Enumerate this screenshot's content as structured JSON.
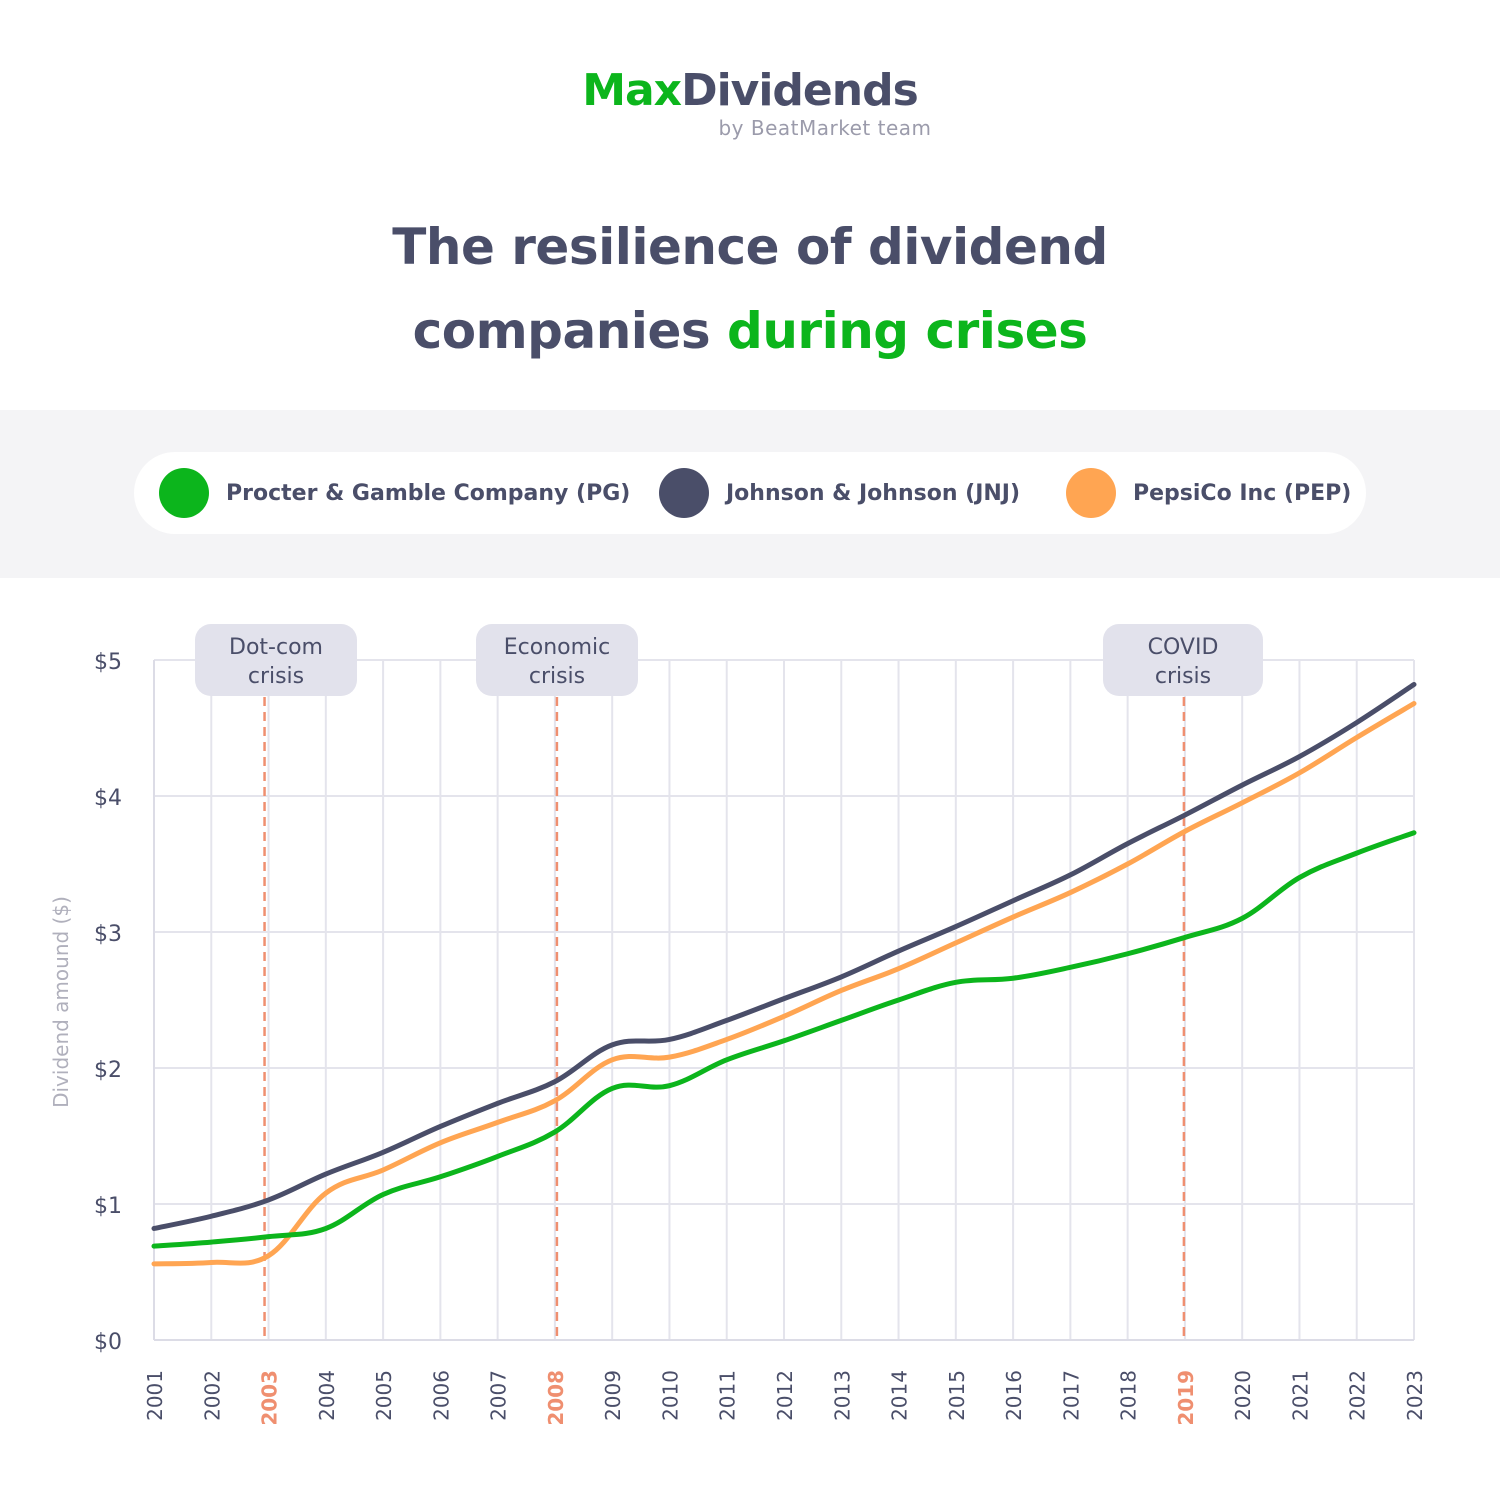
{
  "brand": {
    "name_part1": "Max",
    "name_part2": "Dividends",
    "subtitle": "by BeatMarket team"
  },
  "title": {
    "line1": "The resilience of dividend",
    "line2_plain": "companies ",
    "line2_accent": "during crises"
  },
  "colors": {
    "green": "#0cb51c",
    "navy": "#4a4e69",
    "orange": "#ffa552",
    "crisis": "#ef8f70",
    "annotation_bg": "#e2e2ec"
  },
  "legend": [
    {
      "label": "Procter & Gamble Company (PG)",
      "color": "#0cb51c"
    },
    {
      "label": "Johnson & Johnson (JNJ)",
      "color": "#4a4e69"
    },
    {
      "label": "PepsiCo Inc (PEP)",
      "color": "#ffa552"
    }
  ],
  "chart_data": {
    "type": "line",
    "ylabel": "Dividend amound ($)",
    "xlabel": "",
    "ylim": [
      0,
      5
    ],
    "yticks": [
      "$0",
      "$1",
      "$2",
      "$3",
      "$4",
      "$5"
    ],
    "grid": true,
    "x": [
      "2001",
      "2002",
      "2003",
      "2004",
      "2005",
      "2006",
      "2007",
      "2008",
      "2009",
      "2010",
      "2011",
      "2012",
      "2013",
      "2014",
      "2015",
      "2016",
      "2017",
      "2018",
      "2019",
      "2020",
      "2021",
      "2022",
      "2023"
    ],
    "series": [
      {
        "name": "Procter & Gamble Company (PG)",
        "color": "#0cb51c",
        "values": [
          0.69,
          0.72,
          0.76,
          0.82,
          1.07,
          1.2,
          1.35,
          1.53,
          1.85,
          1.87,
          2.06,
          2.2,
          2.35,
          2.5,
          2.63,
          2.66,
          2.74,
          2.84,
          2.96,
          3.1,
          3.4,
          3.58,
          3.73
        ]
      },
      {
        "name": "Johnson & Johnson (JNJ)",
        "color": "#4a4e69",
        "values": [
          0.82,
          0.91,
          1.03,
          1.22,
          1.38,
          1.57,
          1.74,
          1.9,
          2.17,
          2.21,
          2.35,
          2.51,
          2.67,
          2.86,
          3.04,
          3.23,
          3.42,
          3.65,
          3.86,
          4.08,
          4.29,
          4.54,
          4.82
        ]
      },
      {
        "name": "PepsiCo Inc (PEP)",
        "color": "#ffa552",
        "values": [
          0.56,
          0.57,
          0.62,
          1.08,
          1.25,
          1.45,
          1.6,
          1.76,
          2.06,
          2.08,
          2.21,
          2.38,
          2.57,
          2.73,
          2.92,
          3.11,
          3.29,
          3.5,
          3.74,
          3.95,
          4.17,
          4.43,
          4.68
        ]
      }
    ],
    "annotations": [
      {
        "x": "2003",
        "line1": "Dot-com",
        "line2": "crisis"
      },
      {
        "x": "2008",
        "line1": "Economic",
        "line2": "crisis"
      },
      {
        "x": "2019",
        "line1": "COVID",
        "line2": "crisis"
      }
    ],
    "highlight_years": [
      "2003",
      "2008",
      "2019"
    ]
  }
}
